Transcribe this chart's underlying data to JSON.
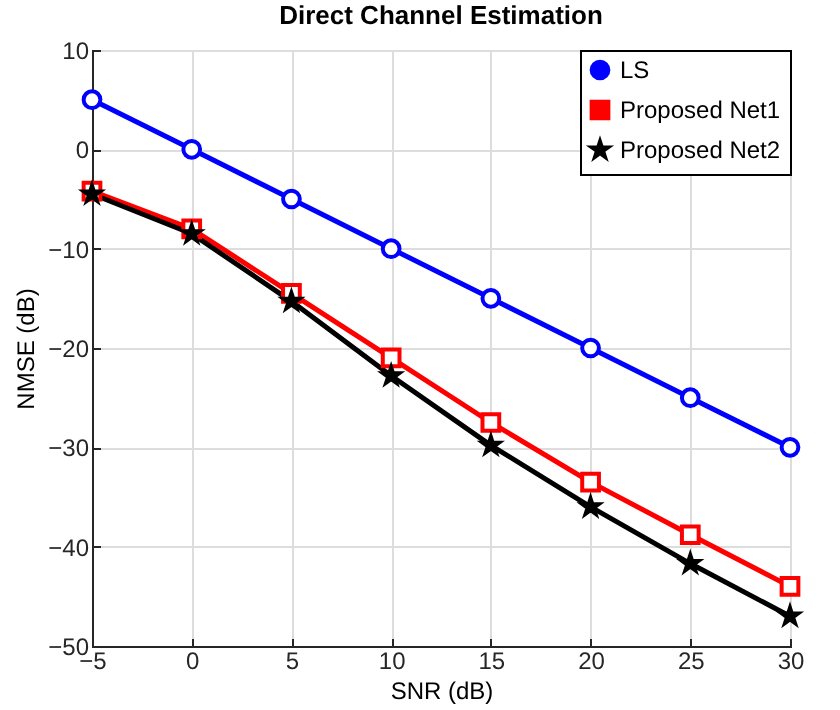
{
  "chart_data": {
    "type": "line",
    "title": "Direct Channel Estimation",
    "xlabel": "SNR (dB)",
    "ylabel": "NMSE (dB)",
    "x": [
      -5,
      0,
      5,
      10,
      15,
      20,
      25,
      30
    ],
    "series": [
      {
        "name": "LS",
        "color": "#0000ff",
        "marker": "circle",
        "values": [
          5,
          0,
          -5,
          -10,
          -15,
          -20,
          -25,
          -30
        ]
      },
      {
        "name": "Proposed Net1",
        "color": "#ff0000",
        "marker": "square",
        "values": [
          -4.2,
          -8,
          -14.5,
          -21,
          -27.5,
          -33.5,
          -38.8,
          -44
        ]
      },
      {
        "name": "Proposed Net2",
        "color": "#000000",
        "marker": "star",
        "values": [
          -4.5,
          -8.5,
          -15.3,
          -22.8,
          -29.8,
          -36,
          -41.7,
          -47
        ]
      }
    ],
    "xlim": [
      -5,
      30
    ],
    "xticks": [
      -5,
      0,
      5,
      10,
      15,
      20,
      25,
      30
    ],
    "ylim": [
      -50,
      10
    ],
    "yticks": [
      -50,
      -40,
      -30,
      -20,
      -10,
      0,
      10
    ],
    "grid": true,
    "legend": "top right",
    "line_style": "solid"
  }
}
